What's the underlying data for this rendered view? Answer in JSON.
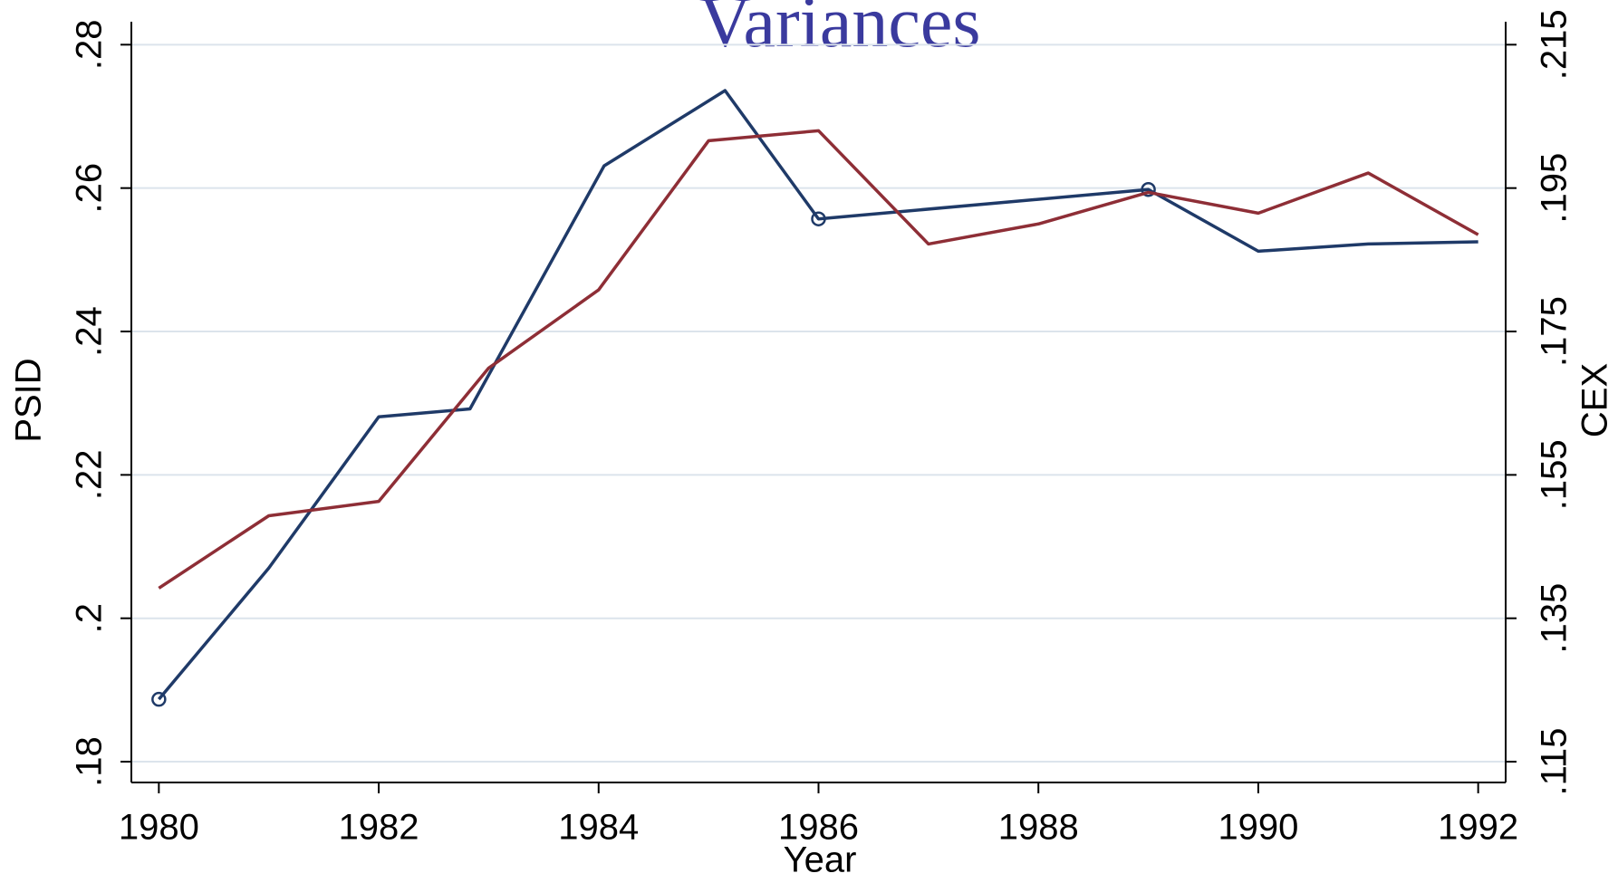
{
  "chart_data": {
    "type": "line",
    "title": "Variances",
    "xlabel": "Year",
    "ylabel": "PSID",
    "y2label": "CEX",
    "xlim": [
      1979.75,
      1992.25
    ],
    "xticks": [
      1980,
      1982,
      1984,
      1986,
      1988,
      1990,
      1992
    ],
    "ylim": [
      0.1771,
      0.2832
    ],
    "yticks": [
      {
        "value": 0.18,
        "label": ".18"
      },
      {
        "value": 0.2,
        "label": ".2"
      },
      {
        "value": 0.22,
        "label": ".22"
      },
      {
        "value": 0.24,
        "label": ".24"
      },
      {
        "value": 0.26,
        "label": ".26"
      },
      {
        "value": 0.28,
        "label": ".28"
      }
    ],
    "y2lim": [
      0.1121,
      0.2182
    ],
    "y2ticks": [
      {
        "value": 0.115,
        "label": ".115"
      },
      {
        "value": 0.135,
        "label": ".135"
      },
      {
        "value": 0.155,
        "label": ".155"
      },
      {
        "value": 0.175,
        "label": ".175"
      },
      {
        "value": 0.195,
        "label": ".195"
      },
      {
        "value": 0.215,
        "label": ".215"
      }
    ],
    "grid": true,
    "series": [
      {
        "name": "PSID",
        "color": "#1f3a68",
        "axis": "y",
        "x": [
          1980,
          1981,
          1982,
          1982.83,
          1984.05,
          1985.15,
          1986,
          1989,
          1990,
          1991,
          1992
        ],
        "values": [
          0.1887,
          0.207,
          0.2281,
          0.2292,
          0.2631,
          0.2736,
          0.2557,
          0.2598,
          0.2512,
          0.2522,
          0.2525
        ],
        "marker_indices": [
          0,
          6,
          7
        ]
      },
      {
        "name": "CEX",
        "color": "#8e2e36",
        "axis": "y2",
        "x": [
          1980,
          1981,
          1982,
          1983,
          1984,
          1985,
          1986,
          1987,
          1988,
          1989,
          1990,
          1991,
          1992
        ],
        "values": [
          0.1392,
          0.1493,
          0.1513,
          0.1699,
          0.1808,
          0.2016,
          0.203,
          0.1872,
          0.19,
          0.1944,
          0.1915,
          0.1971,
          0.1885
        ]
      }
    ]
  }
}
